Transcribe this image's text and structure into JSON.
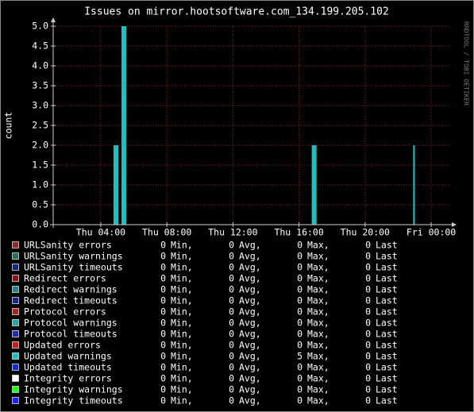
{
  "chart_data": {
    "type": "area",
    "title": "Issues on mirror.hootsoftware.com_134.199.205.102",
    "y_label": "count",
    "watermark": "RRDTOOL / TOBI OETIKER",
    "xlim": [
      1.12,
      25.15
    ],
    "xticks": [
      {
        "value": 4,
        "label": "Thu 04:00"
      },
      {
        "value": 8,
        "label": "Thu 08:00"
      },
      {
        "value": 12,
        "label": "Thu 12:00"
      },
      {
        "value": 16,
        "label": "Thu 16:00"
      },
      {
        "value": 20,
        "label": "Thu 20:00"
      },
      {
        "value": 24,
        "label": "Fri 00:00"
      }
    ],
    "ylim": [
      0,
      5
    ],
    "yticks": [
      {
        "value": 0,
        "label": "0.0"
      },
      0.5,
      {
        "value": 1,
        "label": "1.0"
      },
      1.5,
      {
        "value": 2,
        "label": "2.0"
      },
      2.5,
      {
        "value": 3,
        "label": "3.0"
      },
      3.5,
      {
        "value": 4,
        "label": "4.0"
      },
      4.5,
      {
        "value": 5,
        "label": "5.0"
      }
    ],
    "grid": true,
    "x": [
      1.12,
      4.77,
      5.06,
      5.25,
      5.54,
      16.77,
      17.06,
      22.91,
      23.01
    ],
    "legend_stats": [
      "Min,",
      "Avg,",
      "Max,",
      "Last"
    ],
    "series": [
      {
        "name": "URLSanity errors",
        "color": "#8b2a2a",
        "min": 0,
        "avg": 0,
        "max": 0,
        "last": 0
      },
      {
        "name": "URLSanity warnings",
        "color": "#2a7050",
        "min": 0,
        "avg": 0,
        "max": 0,
        "last": 0
      },
      {
        "name": "URLSanity timeouts",
        "color": "#1e2470",
        "min": 0,
        "avg": 0,
        "max": 0,
        "last": 0
      },
      {
        "name": "Redirect errors",
        "color": "#7a1a1a",
        "min": 0,
        "avg": 0,
        "max": 0,
        "last": 0
      },
      {
        "name": "Redirect warnings",
        "color": "#2a8080",
        "min": 0,
        "avg": 0,
        "max": 0,
        "last": 0
      },
      {
        "name": "Redirect timeouts",
        "color": "#1a2a80",
        "min": 0,
        "avg": 0,
        "max": 0,
        "last": 0
      },
      {
        "name": "Protocol errors",
        "color": "#a02828",
        "min": 0,
        "avg": 0,
        "max": 0,
        "last": 0
      },
      {
        "name": "Protocol warnings",
        "color": "#30a0a0",
        "min": 0,
        "avg": 0,
        "max": 0,
        "last": 0
      },
      {
        "name": "Protocol timeouts",
        "color": "#2030a0",
        "min": 0,
        "avg": 0,
        "max": 0,
        "last": 0
      },
      {
        "name": "Updated errors",
        "color": "#c02020",
        "min": 0,
        "avg": 0,
        "max": 0,
        "last": 0
      },
      {
        "name": "Updated warnings",
        "color": "#1fbfbf",
        "min": 0,
        "avg": 0,
        "max": 5,
        "last": 0,
        "values": [
          0,
          2,
          0,
          5,
          0,
          2,
          0,
          2,
          0
        ]
      },
      {
        "name": "Updated timeouts",
        "color": "#1030c0",
        "min": 0,
        "avg": 0,
        "max": 0,
        "last": 0
      },
      {
        "name": "Integrity errors",
        "color": "#ffffff",
        "min": 0,
        "avg": 0,
        "max": 0,
        "last": 0
      },
      {
        "name": "Integrity warnings",
        "color": "#20ff20",
        "min": 0,
        "avg": 0,
        "max": 0,
        "last": 0
      },
      {
        "name": "Integrity timeouts",
        "color": "#2020ff",
        "min": 0,
        "avg": 0,
        "max": 0,
        "last": 0
      }
    ]
  }
}
